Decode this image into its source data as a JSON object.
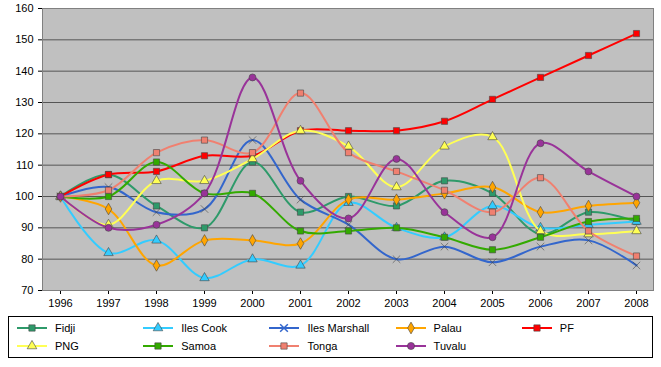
{
  "chart_data": {
    "type": "line",
    "categories": [
      "1996",
      "1997",
      "1998",
      "1999",
      "2000",
      "2001",
      "2002",
      "2003",
      "2004",
      "2005",
      "2006",
      "2007",
      "2008"
    ],
    "ylim": [
      70,
      160
    ],
    "yticks": [
      70,
      80,
      90,
      100,
      110,
      120,
      130,
      140,
      150,
      160
    ],
    "grid": true,
    "legend": "bottom",
    "line_style": "smooth",
    "series": [
      {
        "name": "Fidji",
        "color": "#2e9a6a",
        "marker": "square",
        "values": [
          100,
          107,
          97,
          90,
          111,
          95,
          100,
          97,
          105,
          101,
          88,
          95,
          92
        ]
      },
      {
        "name": "Iles Cook",
        "color": "#33ccff",
        "marker": "triangle",
        "values": [
          100,
          82,
          86,
          74,
          80,
          78,
          98,
          90,
          87,
          97,
          90,
          91,
          92
        ]
      },
      {
        "name": "Iles Marshall",
        "color": "#3366cc",
        "marker": "times",
        "values": [
          100,
          103,
          95,
          96,
          118,
          99,
          91,
          80,
          84,
          79,
          84,
          86,
          78
        ]
      },
      {
        "name": "Palau",
        "color": "#ffa500",
        "marker": "diamond",
        "values": [
          100,
          96,
          78,
          86,
          86,
          85,
          99,
          99,
          101,
          103,
          95,
          97,
          98
        ]
      },
      {
        "name": "PF",
        "color": "#ff0000",
        "marker": "square",
        "values": [
          100,
          107,
          108,
          113,
          113,
          121,
          121,
          121,
          124,
          131,
          138,
          145,
          152
        ]
      },
      {
        "name": "PNG",
        "color": "#ffff55",
        "marker": "triangle",
        "values": [
          100,
          91,
          105,
          105,
          112,
          121,
          116,
          103,
          116,
          119,
          89,
          88,
          89
        ]
      },
      {
        "name": "Samoa",
        "color": "#33aa00",
        "marker": "square",
        "values": [
          100,
          100,
          111,
          101,
          101,
          89,
          89,
          90,
          87,
          83,
          87,
          92,
          93
        ]
      },
      {
        "name": "Tonga",
        "color": "#f08070",
        "marker": "square",
        "values": [
          100,
          102,
          114,
          118,
          114,
          133,
          114,
          108,
          102,
          95,
          106,
          89,
          81
        ]
      },
      {
        "name": "Tuvalu",
        "color": "#993399",
        "marker": "circle",
        "values": [
          100,
          90,
          91,
          101,
          138,
          105,
          93,
          112,
          95,
          87,
          117,
          108,
          100
        ]
      }
    ]
  }
}
